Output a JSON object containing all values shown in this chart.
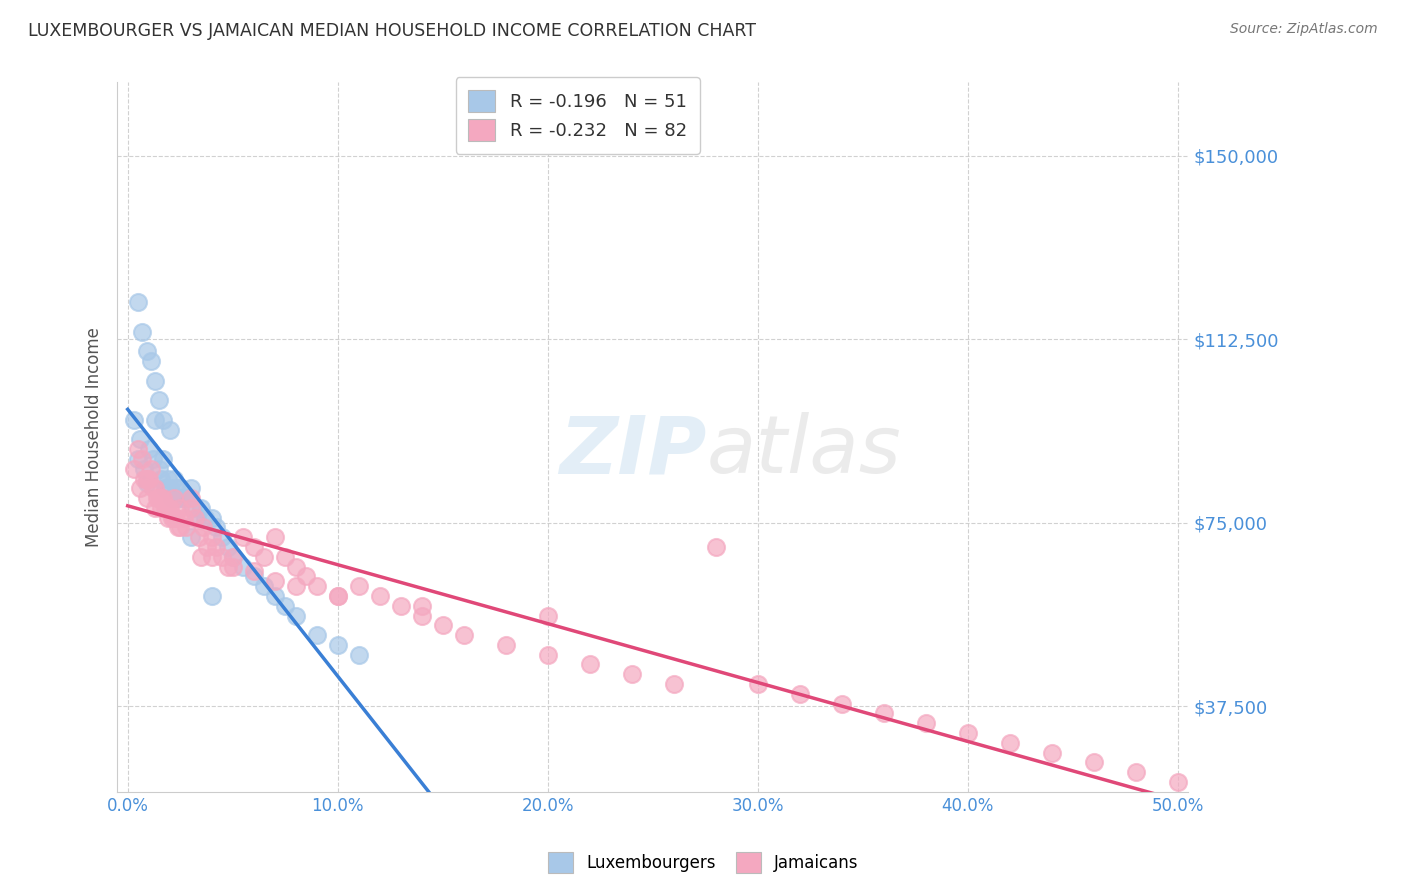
{
  "title": "LUXEMBOURGER VS JAMAICAN MEDIAN HOUSEHOLD INCOME CORRELATION CHART",
  "source": "Source: ZipAtlas.com",
  "ylabel": "Median Household Income",
  "watermark": "ZIPatlas",
  "legend_lux": "R = -0.196   N = 51",
  "legend_jam": "R = -0.232   N = 82",
  "lux_color": "#a8c8e8",
  "jam_color": "#f4a8c0",
  "lux_line_color": "#3a7fd5",
  "jam_line_color": "#e04878",
  "axis_label_color": "#4a90d9",
  "background_color": "#ffffff",
  "xlim": [
    -0.005,
    0.505
  ],
  "ylim": [
    20000,
    165000
  ],
  "yticks": [
    37500,
    75000,
    112500,
    150000
  ],
  "ytick_labels": [
    "$37,500",
    "$75,000",
    "$112,500",
    "$150,000"
  ],
  "lux_points_x": [
    0.003,
    0.005,
    0.006,
    0.008,
    0.009,
    0.01,
    0.012,
    0.013,
    0.015,
    0.016,
    0.017,
    0.018,
    0.019,
    0.02,
    0.021,
    0.022,
    0.023,
    0.024,
    0.025,
    0.027,
    0.028,
    0.03,
    0.031,
    0.033,
    0.035,
    0.037,
    0.04,
    0.042,
    0.045,
    0.048,
    0.05,
    0.055,
    0.06,
    0.065,
    0.07,
    0.075,
    0.08,
    0.09,
    0.1,
    0.11,
    0.005,
    0.007,
    0.009,
    0.011,
    0.013,
    0.015,
    0.017,
    0.02,
    0.025,
    0.03,
    0.04
  ],
  "lux_points_y": [
    96000,
    88000,
    92000,
    86000,
    83000,
    90000,
    88000,
    96000,
    86000,
    84000,
    88000,
    82000,
    84000,
    82000,
    80000,
    84000,
    82000,
    80000,
    82000,
    80000,
    80000,
    82000,
    78000,
    76000,
    78000,
    76000,
    76000,
    74000,
    72000,
    70000,
    68000,
    66000,
    64000,
    62000,
    60000,
    58000,
    56000,
    52000,
    50000,
    48000,
    120000,
    114000,
    110000,
    108000,
    104000,
    100000,
    96000,
    94000,
    80000,
    72000,
    60000
  ],
  "jam_points_x": [
    0.003,
    0.005,
    0.006,
    0.008,
    0.009,
    0.01,
    0.012,
    0.013,
    0.014,
    0.015,
    0.016,
    0.017,
    0.018,
    0.019,
    0.02,
    0.021,
    0.022,
    0.023,
    0.024,
    0.025,
    0.027,
    0.028,
    0.03,
    0.032,
    0.034,
    0.036,
    0.038,
    0.04,
    0.042,
    0.045,
    0.048,
    0.05,
    0.055,
    0.06,
    0.065,
    0.07,
    0.075,
    0.08,
    0.085,
    0.09,
    0.1,
    0.11,
    0.12,
    0.13,
    0.14,
    0.15,
    0.16,
    0.18,
    0.2,
    0.22,
    0.24,
    0.26,
    0.28,
    0.3,
    0.32,
    0.34,
    0.36,
    0.38,
    0.4,
    0.42,
    0.44,
    0.46,
    0.48,
    0.5,
    0.007,
    0.009,
    0.011,
    0.013,
    0.016,
    0.019,
    0.022,
    0.025,
    0.03,
    0.035,
    0.04,
    0.05,
    0.06,
    0.07,
    0.08,
    0.1,
    0.14,
    0.2
  ],
  "jam_points_y": [
    86000,
    90000,
    82000,
    84000,
    80000,
    84000,
    82000,
    78000,
    80000,
    80000,
    78000,
    80000,
    78000,
    76000,
    78000,
    76000,
    80000,
    76000,
    74000,
    78000,
    76000,
    74000,
    80000,
    76000,
    72000,
    74000,
    70000,
    72000,
    70000,
    68000,
    66000,
    68000,
    72000,
    70000,
    68000,
    72000,
    68000,
    66000,
    64000,
    62000,
    60000,
    62000,
    60000,
    58000,
    56000,
    54000,
    52000,
    50000,
    48000,
    46000,
    44000,
    42000,
    70000,
    42000,
    40000,
    38000,
    36000,
    34000,
    32000,
    30000,
    28000,
    26000,
    24000,
    22000,
    88000,
    84000,
    86000,
    82000,
    80000,
    78000,
    76000,
    74000,
    78000,
    68000,
    68000,
    66000,
    65000,
    63000,
    62000,
    60000,
    58000,
    56000
  ]
}
